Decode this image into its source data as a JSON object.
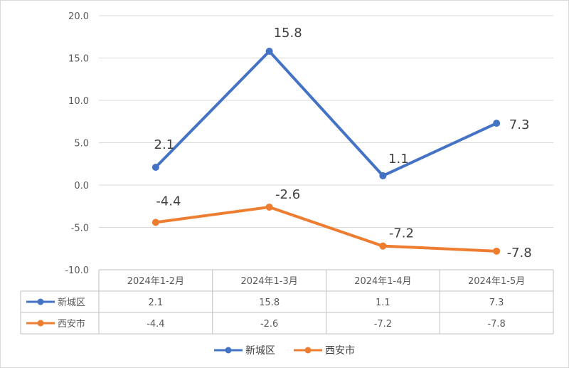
{
  "chart_data": {
    "type": "line",
    "categories": [
      "2024年1-2月",
      "2024年1-3月",
      "2024年1-4月",
      "2024年1-5月"
    ],
    "series": [
      {
        "name": "新城区",
        "values": [
          2.1,
          15.8,
          1.1,
          7.3
        ],
        "color": "#4472c4",
        "labels": [
          "2.1",
          "15.8",
          "1.1",
          "7.3"
        ]
      },
      {
        "name": "西安市",
        "values": [
          -4.4,
          -2.6,
          -7.2,
          -7.8
        ],
        "color": "#ed7d31",
        "labels": [
          "-4.4",
          "-2.6",
          "-7.2",
          "-7.8"
        ]
      }
    ],
    "ylim": [
      -10,
      20
    ],
    "yticks": [
      "20.0",
      "15.0",
      "10.0",
      "5.0",
      "0.0",
      "-5.0",
      "-10.0"
    ],
    "grid": true,
    "data_table": true,
    "legend_position": "bottom"
  }
}
